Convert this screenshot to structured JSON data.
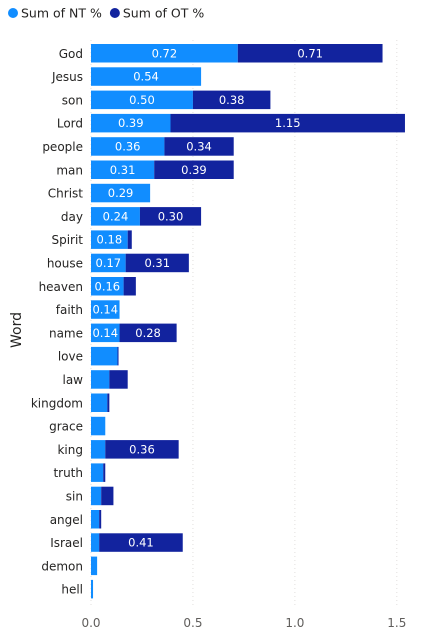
{
  "chart_data": {
    "type": "bar",
    "orientation": "horizontal",
    "stacked": true,
    "ylabel": "Word",
    "xlabel": "",
    "xlim": [
      0,
      1.55
    ],
    "xticks": [
      "0.0",
      "0.5",
      "1.0",
      "1.5"
    ],
    "xtick_values": [
      0,
      0.5,
      1.0,
      1.5
    ],
    "grid": true,
    "legend_position": "top-left",
    "categories": [
      "God",
      "Jesus",
      "son",
      "Lord",
      "people",
      "man",
      "Christ",
      "day",
      "Spirit",
      "house",
      "heaven",
      "faith",
      "name",
      "love",
      "law",
      "kingdom",
      "grace",
      "king",
      "truth",
      "sin",
      "angel",
      "Israel",
      "demon",
      "hell"
    ],
    "series": [
      {
        "name": "Sum of NT %",
        "color": "#118DFF",
        "values": [
          0.72,
          0.54,
          0.5,
          0.39,
          0.36,
          0.31,
          0.29,
          0.24,
          0.18,
          0.17,
          0.16,
          0.14,
          0.14,
          0.13,
          0.09,
          0.08,
          0.07,
          0.07,
          0.06,
          0.05,
          0.04,
          0.04,
          0.03,
          0.01
        ],
        "labels": [
          "0.72",
          "0.54",
          "0.50",
          "0.39",
          "0.36",
          "0.31",
          "0.29",
          "0.24",
          "0.18",
          "0.17",
          "0.16",
          "0.14",
          "0.14",
          "",
          "",
          "",
          "",
          "",
          "",
          "",
          "",
          "",
          "",
          ""
        ]
      },
      {
        "name": "Sum of OT %",
        "color": "#12239E",
        "values": [
          0.71,
          0.0,
          0.38,
          1.15,
          0.34,
          0.39,
          0.0,
          0.3,
          0.02,
          0.31,
          0.06,
          0.0,
          0.28,
          0.005,
          0.09,
          0.01,
          0.0,
          0.36,
          0.01,
          0.06,
          0.01,
          0.41,
          0.0,
          0.0
        ],
        "labels": [
          "0.71",
          "",
          "0.38",
          "1.15",
          "0.34",
          "0.39",
          "",
          "0.30",
          "",
          "0.31",
          "",
          "",
          "0.28",
          "",
          "",
          "",
          "",
          "0.36",
          "",
          "",
          "",
          "0.41",
          "",
          ""
        ]
      }
    ]
  }
}
